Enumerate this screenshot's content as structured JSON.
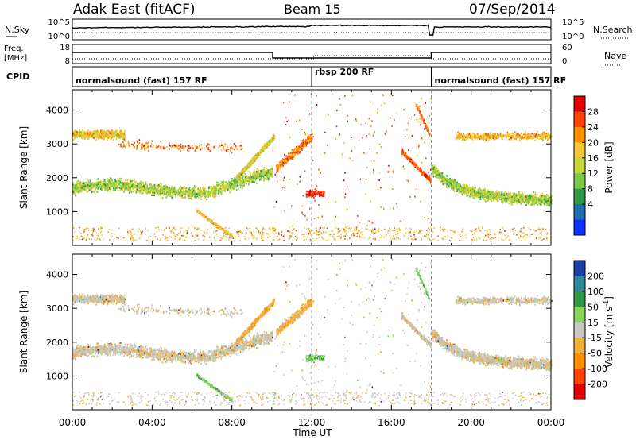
{
  "header": {
    "station": "Adak East (fitACF)",
    "beam": "Beam 15",
    "date": "07/Sep/2014"
  },
  "strip_labels": {
    "nsky": "N.Sky",
    "nsearch": "N.Search",
    "freq_line1": "Freq.",
    "freq_line2": "[MHz]",
    "nave": "Nave",
    "cpid": "CPID",
    "nsky_ticks": [
      "10^5",
      "10^0"
    ],
    "nsearch_ticks": [
      "10^5",
      "10^0"
    ],
    "freq_ticks": [
      "18",
      "8"
    ],
    "nave_ticks": [
      "60",
      "0"
    ]
  },
  "cpid_segments": [
    {
      "label": "normalsound (fast) 157 RF",
      "start_h": 0,
      "end_h": 12.0
    },
    {
      "label": "rbsp 200 RF",
      "start_h": 12.0,
      "end_h": 18.0
    },
    {
      "label": "normalsound (fast) 157 RF",
      "start_h": 18.0,
      "end_h": 24.0
    }
  ],
  "chart_data": [
    {
      "type": "heatmap",
      "panel": "power",
      "ylabel": "Slant Range [km]",
      "xlabel": "Time UT",
      "xlim": [
        0,
        24
      ],
      "ylim": [
        0,
        4600
      ],
      "x_ticks": [
        "00:00",
        "04:00",
        "08:00",
        "12:00",
        "16:00",
        "20:00",
        "00:00"
      ],
      "y_ticks": [
        1000,
        2000,
        3000,
        4000
      ],
      "colorbar": {
        "label": "Power [dB]",
        "ticks": [
          "28",
          "24",
          "20",
          "16",
          "12",
          "8",
          "4"
        ],
        "colors": [
          "#e00000",
          "#ff4400",
          "#ff9000",
          "#f2c83a",
          "#c8d63a",
          "#7ec84a",
          "#2f9a46",
          "#1c6fb0",
          "#1030ff"
        ]
      },
      "bands": [
        {
          "name": "lower_band",
          "time_range": [
            0,
            10
          ],
          "slant_range_km": [
            1500,
            2100
          ]
        },
        {
          "name": "upper_band",
          "time_range": [
            0,
            2.6
          ],
          "slant_range_km": [
            3000,
            3500
          ]
        },
        {
          "name": "rising_arc",
          "time_range": [
            8,
            10
          ],
          "slant_range_km": [
            2000,
            3400
          ]
        },
        {
          "name": "descending_streak",
          "time_range": [
            6.2,
            8
          ],
          "slant_range_km": [
            300,
            1100
          ]
        },
        {
          "name": "lower_band_evening",
          "time_range": [
            18,
            24
          ],
          "slant_range_km": [
            1400,
            1900
          ]
        },
        {
          "name": "upper_band_evening",
          "time_range": [
            19.2,
            24
          ],
          "slant_range_km": [
            2900,
            3400
          ]
        }
      ]
    },
    {
      "type": "heatmap",
      "panel": "velocity",
      "ylabel": "Slant Range [km]",
      "xlabel": "Time UT",
      "xlim": [
        0,
        24
      ],
      "ylim": [
        0,
        4600
      ],
      "x_ticks": [
        "00:00",
        "04:00",
        "08:00",
        "12:00",
        "16:00",
        "20:00",
        "00:00"
      ],
      "y_ticks": [
        1000,
        2000,
        3000,
        4000
      ],
      "colorbar": {
        "label": "Velocity [m s^-1]",
        "label_main": "Velocity [m s",
        "label_sup": "-1",
        "label_end": "]",
        "ticks": [
          "200",
          "100",
          "50",
          "15",
          "-15",
          "-50",
          "-100",
          "-200"
        ],
        "colors": [
          "#1a3fa8",
          "#2d8a9a",
          "#2f9a46",
          "#86d85a",
          "#c8c8c0",
          "#f2b23a",
          "#ff9000",
          "#ff4400",
          "#e00000"
        ]
      }
    }
  ]
}
